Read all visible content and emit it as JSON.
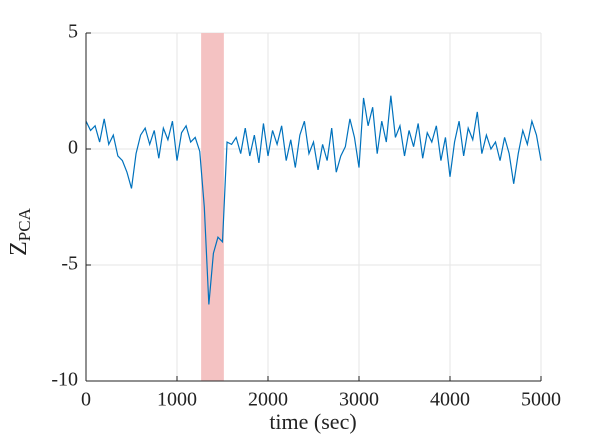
{
  "chart_data": {
    "type": "line",
    "xlabel": "time (sec)",
    "ylabel": "Z",
    "ylabel_subscript": "PCA",
    "x": [
      0,
      50,
      100,
      150,
      200,
      250,
      300,
      350,
      400,
      450,
      500,
      550,
      600,
      650,
      700,
      750,
      800,
      850,
      900,
      950,
      1000,
      1050,
      1100,
      1150,
      1200,
      1250,
      1300,
      1350,
      1400,
      1450,
      1500,
      1550,
      1600,
      1650,
      1700,
      1750,
      1800,
      1850,
      1900,
      1950,
      2000,
      2050,
      2100,
      2150,
      2200,
      2250,
      2300,
      2350,
      2400,
      2450,
      2500,
      2550,
      2600,
      2650,
      2700,
      2750,
      2800,
      2850,
      2900,
      2950,
      3000,
      3050,
      3100,
      3150,
      3200,
      3250,
      3300,
      3350,
      3400,
      3450,
      3500,
      3550,
      3600,
      3650,
      3700,
      3750,
      3800,
      3850,
      3900,
      3950,
      4000,
      4050,
      4100,
      4150,
      4200,
      4250,
      4300,
      4350,
      4400,
      4450,
      4500,
      4550,
      4600,
      4650,
      4700,
      4750,
      4800,
      4850,
      4900,
      4950,
      5000
    ],
    "series": [
      {
        "color": "#0072bd",
        "values": [
          1.2,
          0.8,
          1.0,
          0.3,
          1.3,
          0.2,
          0.6,
          -0.3,
          -0.5,
          -1.0,
          -1.7,
          -0.2,
          0.6,
          0.9,
          0.2,
          0.8,
          -0.4,
          0.9,
          0.4,
          1.2,
          -0.5,
          0.7,
          1.0,
          0.3,
          0.5,
          -0.1,
          -2.5,
          -6.7,
          -4.5,
          -3.8,
          -4.0,
          0.3,
          0.2,
          0.5,
          -0.2,
          0.9,
          -0.3,
          0.6,
          -0.6,
          1.1,
          -0.3,
          0.8,
          0.2,
          1.0,
          -0.5,
          0.4,
          -0.8,
          0.6,
          1.2,
          -0.2,
          0.3,
          -0.9,
          0.2,
          -0.5,
          0.9,
          -1.0,
          -0.3,
          0.1,
          1.3,
          0.5,
          -0.8,
          2.2,
          1.0,
          1.8,
          -0.2,
          1.2,
          0.3,
          2.3,
          0.5,
          1.0,
          -0.3,
          0.8,
          0.1,
          1.1,
          -0.4,
          0.7,
          0.3,
          1.0,
          -0.5,
          0.5,
          -1.2,
          0.3,
          1.2,
          -0.3,
          0.9,
          0.4,
          1.6,
          -0.2,
          0.6,
          0.0,
          0.3,
          -0.5,
          0.5,
          -0.2,
          -1.5,
          -0.2,
          0.8,
          0.2,
          1.2,
          0.6,
          -0.5
        ]
      }
    ],
    "highlight": [
      1265,
      1515
    ],
    "highlight_color": "#f4c2c2",
    "xlim": [
      0,
      5000
    ],
    "xticks": [
      0,
      1000,
      2000,
      3000,
      4000,
      5000
    ],
    "ylim": [
      -10,
      5
    ],
    "yticks": [
      -10,
      -5,
      0,
      5
    ],
    "grid": true
  }
}
